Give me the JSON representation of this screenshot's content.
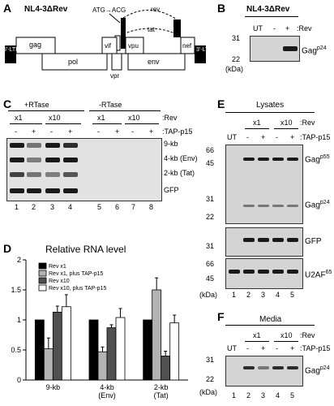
{
  "panelA": {
    "letter": "A",
    "title": "NL4-3ΔRev",
    "mutation": "ATG→ACG",
    "rev": "rev",
    "tat": "tat",
    "ltr5": "5'-LTR",
    "ltr3": "3'-LTR",
    "genes": {
      "gag": "gag",
      "pol": "pol",
      "vif": "vif",
      "vpr": "vpr",
      "vpu": "vpu",
      "env": "env",
      "nef": "nef"
    }
  },
  "panelB": {
    "letter": "B",
    "title": "NL4-3ΔRev",
    "ut": "UT",
    "minus": "-",
    "plus": "+",
    "rev": ":Rev",
    "mw31": "31",
    "mw22": "22",
    "kda": "(kDa)",
    "gag": "Gag",
    "gagSup": "p24"
  },
  "panelC": {
    "letter": "C",
    "plusRT": "+RTase",
    "minusRT": "-RTase",
    "x1a": "x1",
    "x10a": "x10",
    "x1b": "x1",
    "x10b": "x10",
    "rev": ":Rev",
    "tap": ":TAP-p15",
    "signs": [
      "-",
      "+",
      "-",
      "+",
      "-",
      "+",
      "-",
      "+"
    ],
    "bands": [
      "9-kb",
      "4-kb (Env)",
      "2-kb (Tat)",
      "GFP"
    ],
    "lanes": [
      "1",
      "2",
      "3",
      "4",
      "5",
      "6",
      "7",
      "8"
    ]
  },
  "panelD": {
    "letter": "D",
    "title": "Relative RNA level",
    "legend": [
      "Rev x1",
      "Rev x1, plus TAP-p15",
      "Rev x10",
      "Rev x10, plus TAP-p15"
    ],
    "colors": [
      "#000000",
      "#b3b3b3",
      "#505050",
      "#ffffff"
    ]
  },
  "chart_data": {
    "type": "bar",
    "title": "Relative RNA level",
    "categories": [
      "9-kb",
      "4-kb (Env)",
      "2-kb (Tat)"
    ],
    "series": [
      {
        "name": "Rev x1",
        "values": [
          1.0,
          1.0,
          1.0
        ]
      },
      {
        "name": "Rev x1, plus TAP-p15",
        "values": [
          0.52,
          0.47,
          1.5
        ]
      },
      {
        "name": "Rev x10",
        "values": [
          1.13,
          0.87,
          0.4
        ]
      },
      {
        "name": "Rev x10, plus TAP-p15",
        "values": [
          1.22,
          1.04,
          0.95
        ]
      }
    ],
    "errors": [
      [
        0,
        0,
        0
      ],
      [
        0.18,
        0.08,
        0.2
      ],
      [
        0.1,
        0.05,
        0.08
      ],
      [
        0.2,
        0.15,
        0.13
      ]
    ],
    "yticks": [
      "0",
      "0.5",
      "1",
      "1.5",
      "2"
    ],
    "ylim": [
      0,
      2
    ],
    "legend_position": "top-left"
  },
  "panelE": {
    "letter": "E",
    "header": "Lysates",
    "x1": "x1",
    "x10": "x10",
    "rev": ":Rev",
    "ut": "UT",
    "signs": [
      "-",
      "+",
      "-",
      "+"
    ],
    "tap": ":TAP-p15",
    "mwTop": [
      "66",
      "45",
      "31",
      "22"
    ],
    "gag": "Gag",
    "p55": "p55",
    "p24": "p24",
    "gfp": "GFP",
    "gfpMw": "31",
    "u2af": "U2AF",
    "u2afSup": "65",
    "u2afMw": [
      "66",
      "45"
    ],
    "kda": "(kDa)",
    "lanes": [
      "1",
      "2",
      "3",
      "4",
      "5"
    ]
  },
  "panelF": {
    "letter": "F",
    "header": "Media",
    "x1": "x1",
    "x10": "x10",
    "rev": ":Rev",
    "ut": "UT",
    "signs": [
      "-",
      "+",
      "-",
      "+"
    ],
    "tap": ":TAP-p15",
    "mw": [
      "31",
      "22"
    ],
    "kda": "(kDa)",
    "gag": "Gag",
    "gagSup": "p24",
    "lanes": [
      "1",
      "2",
      "3",
      "4",
      "5"
    ]
  }
}
